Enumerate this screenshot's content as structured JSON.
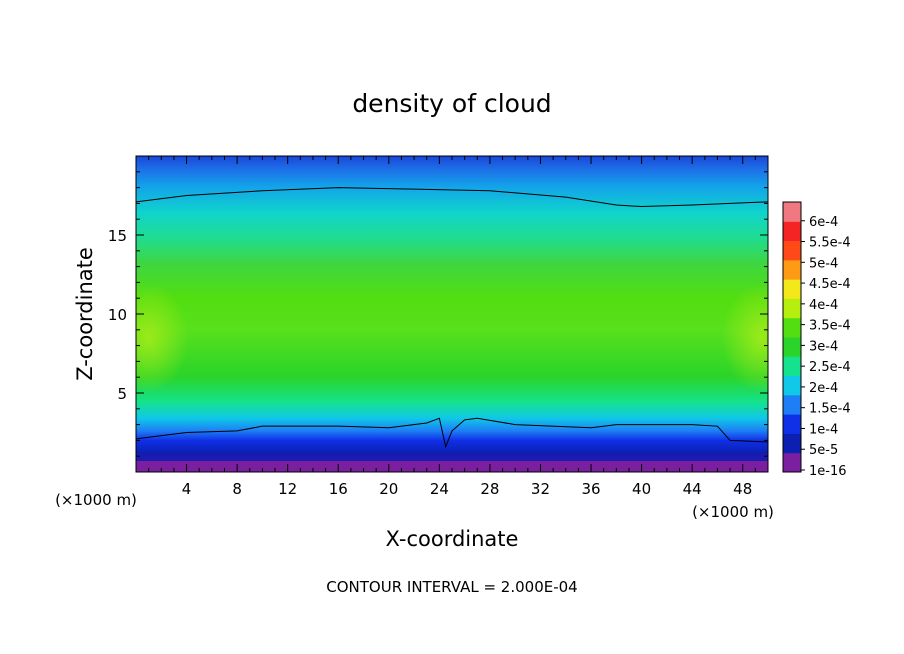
{
  "chart_data": {
    "type": "heatmap",
    "title": "density of cloud",
    "xlabel": "X-coordinate",
    "ylabel": "Z-coordinate",
    "x_unit": "(×1000 m)",
    "y_unit": "(×1000 m)",
    "xlim": [
      0,
      50
    ],
    "ylim": [
      0,
      20
    ],
    "x_ticks": [
      4,
      8,
      12,
      16,
      20,
      24,
      28,
      32,
      36,
      40,
      44,
      48
    ],
    "y_ticks": [
      5,
      10,
      15
    ],
    "footer": "CONTOUR INTERVAL = 2.000E-04",
    "colorbar": {
      "levels": [
        "1e-16",
        "5e-5",
        "1e-4",
        "1.5e-4",
        "2e-4",
        "2.5e-4",
        "3e-4",
        "3.5e-4",
        "4e-4",
        "4.5e-4",
        "5e-4",
        "5.5e-4",
        "6e-4"
      ],
      "colors": [
        "#7a1fa0",
        "#0b1fb0",
        "#1030e8",
        "#1e7ef5",
        "#10c8e8",
        "#14e28e",
        "#2ad42a",
        "#52de10",
        "#b6ee10",
        "#f2e81a",
        "#ff9a14",
        "#ff4a18",
        "#f42424",
        "#f07880"
      ]
    },
    "contour_lines": [
      {
        "level": "2.000E-04",
        "x": [
          0,
          4,
          10,
          16,
          22,
          28,
          34,
          38,
          40,
          44,
          50
        ],
        "z": [
          17.1,
          17.5,
          17.8,
          18.0,
          17.9,
          17.8,
          17.4,
          16.9,
          16.8,
          16.9,
          17.1
        ]
      },
      {
        "level": "2.000E-04",
        "x": [
          0,
          2,
          4,
          8,
          10,
          16,
          20,
          23,
          24,
          24.5,
          25,
          26,
          27,
          30,
          36,
          38,
          40,
          44,
          46,
          47,
          50
        ],
        "z": [
          2.1,
          2.3,
          2.5,
          2.6,
          2.9,
          2.9,
          2.8,
          3.1,
          3.4,
          1.6,
          2.6,
          3.3,
          3.4,
          3.0,
          2.8,
          3.0,
          3.0,
          3.0,
          2.9,
          2.0,
          1.9
        ]
      }
    ]
  }
}
